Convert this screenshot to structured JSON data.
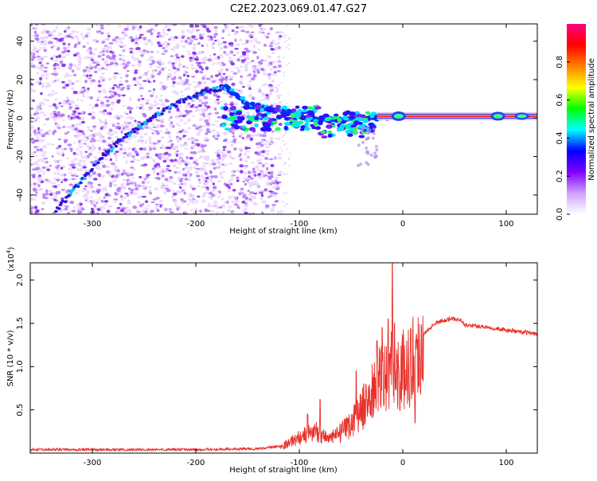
{
  "title": "C2E2.2023.069.01.47.G27",
  "colors": {
    "snr_line": "#e8302a",
    "spec_low": "#e9d6fb",
    "spec_mid": "#7f22ee",
    "spec_high": "#3a10d8"
  },
  "chart_data": [
    {
      "type": "heatmap",
      "name": "spectrogram",
      "xlabel": "Height of straight line (km)",
      "ylabel": "Frequency (Hz)",
      "xlim": [
        -360,
        130
      ],
      "ylim": [
        -50,
        49
      ],
      "x_ticks": [
        -300,
        -200,
        -100,
        0,
        100
      ],
      "y_ticks": [
        -40,
        -20,
        0,
        20,
        40
      ],
      "x_tick_labels": [
        "-300",
        "-200",
        "-100",
        "0",
        "100"
      ],
      "y_tick_labels": [
        "-40",
        "-20",
        "0",
        "20",
        "40"
      ],
      "noise_extent_x": [
        -360,
        -118
      ],
      "tone_start_x": -25,
      "tone_frequency": 1,
      "trace_points": [
        [
          -335,
          -48
        ],
        [
          -310,
          -32
        ],
        [
          -290,
          -20
        ],
        [
          -270,
          -10
        ],
        [
          -250,
          -3
        ],
        [
          -230,
          4
        ],
        [
          -210,
          10
        ],
        [
          -190,
          14
        ],
        [
          -170,
          16
        ],
        [
          -150,
          7
        ],
        [
          -130,
          5
        ],
        [
          -110,
          3
        ],
        [
          -90,
          0
        ],
        [
          -70,
          -1
        ],
        [
          -50,
          0
        ],
        [
          -30,
          0
        ],
        [
          -10,
          1
        ],
        [
          0,
          1
        ]
      ],
      "colorbar": {
        "label": "Normalized spectral amplitude",
        "range": [
          0,
          1
        ],
        "ticks": [
          0.0,
          0.2,
          0.4,
          0.6,
          0.8
        ],
        "tick_labels": [
          "0.0",
          "0.2",
          "0.4",
          "0.6",
          "0.8"
        ],
        "colors": [
          "#ffffff",
          "#d0a0ff",
          "#8000ff",
          "#0000ff",
          "#00ffff",
          "#00ff00",
          "#ffff00",
          "#ff8000",
          "#ff0000",
          "#ff0080"
        ]
      }
    },
    {
      "type": "line",
      "name": "snr",
      "xlabel": "Height of straight line (km)",
      "ylabel": "SNR (10 * v/v)",
      "multiplier_label": "(x10",
      "multiplier_exp": "4",
      "multiplier_close": ")",
      "xlim": [
        -360,
        130
      ],
      "ylim": [
        0.0,
        2.2
      ],
      "x_ticks": [
        -300,
        -200,
        -100,
        0,
        100
      ],
      "y_ticks": [
        0.5,
        1.0,
        1.5,
        2.0
      ],
      "x_tick_labels": [
        "-300",
        "-200",
        "-100",
        "0",
        "100"
      ],
      "y_tick_labels": [
        "0.5",
        "1.0",
        "1.5",
        "2.0"
      ],
      "envelope": [
        [
          -360,
          0.04
        ],
        [
          -200,
          0.04
        ],
        [
          -140,
          0.05
        ],
        [
          -118,
          0.08
        ],
        [
          -100,
          0.2
        ],
        [
          -85,
          0.28
        ],
        [
          -70,
          0.18
        ],
        [
          -55,
          0.3
        ],
        [
          -40,
          0.55
        ],
        [
          -30,
          0.75
        ],
        [
          -20,
          0.95
        ],
        [
          -12,
          1.05
        ],
        [
          -5,
          1.0
        ],
        [
          5,
          1.1
        ],
        [
          15,
          1.3
        ],
        [
          30,
          1.5
        ],
        [
          45,
          1.55
        ],
        [
          55,
          1.55
        ],
        [
          60,
          1.48
        ],
        [
          80,
          1.46
        ],
        [
          100,
          1.42
        ],
        [
          130,
          1.38
        ]
      ],
      "spikes": [
        [
          -10,
          2.2
        ],
        [
          -14,
          1.55
        ],
        [
          -20,
          1.45
        ],
        [
          -8,
          1.5
        ],
        [
          -25,
          1.3
        ],
        [
          12,
          0.35
        ],
        [
          -80,
          0.62
        ],
        [
          -92,
          0.45
        ],
        [
          -45,
          0.95
        ]
      ]
    }
  ]
}
